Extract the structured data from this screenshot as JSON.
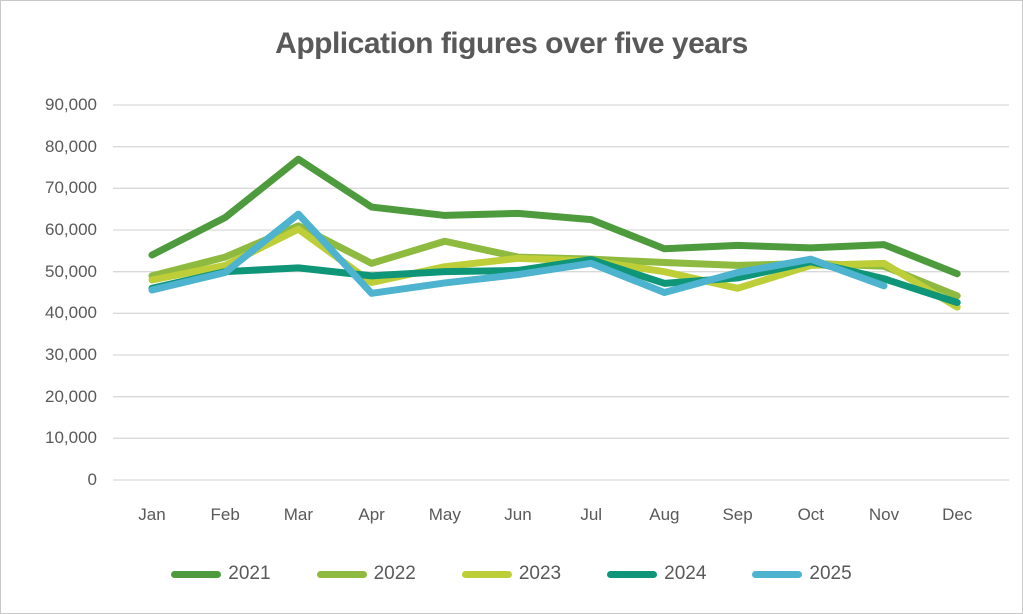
{
  "chart_data": {
    "type": "line",
    "title": "Application figures over five years",
    "x_categories": [
      "Jan",
      "Feb",
      "Mar",
      "Apr",
      "May",
      "Jun",
      "Jul",
      "Aug",
      "Sep",
      "Oct",
      "Nov",
      "Dec"
    ],
    "y_axis": {
      "min": 0,
      "max": 90000,
      "tick_interval": 10000,
      "tick_labels": [
        "0",
        "10,000",
        "20,000",
        "30,000",
        "40,000",
        "50,000",
        "60,000",
        "70,000",
        "80,000",
        "90,000"
      ]
    },
    "grid": "horizontal",
    "legend_position": "bottom",
    "text_color": "#595959",
    "gridline_color": "#d9d9d9",
    "series": [
      {
        "name": "2021",
        "color": "#4E9B3D",
        "values": [
          54000,
          63000,
          77000,
          65500,
          63500,
          64000,
          62500,
          55500,
          56300,
          55700,
          56500,
          49500
        ]
      },
      {
        "name": "2022",
        "color": "#8EBA3F",
        "values": [
          49000,
          53500,
          61000,
          52000,
          57300,
          53500,
          53000,
          52200,
          51500,
          52000,
          51300,
          44200
        ]
      },
      {
        "name": "2023",
        "color": "#BDCE39",
        "values": [
          48000,
          51500,
          60200,
          47400,
          51200,
          53200,
          52600,
          50000,
          46000,
          51500,
          52000,
          41500
        ]
      },
      {
        "name": "2024",
        "color": "#0F9578",
        "values": [
          46000,
          50000,
          50900,
          49000,
          50000,
          50300,
          52900,
          47200,
          48500,
          52400,
          48300,
          42600
        ]
      },
      {
        "name": "2025",
        "color": "#4DB3CE",
        "values": [
          45600,
          49800,
          63800,
          44800,
          47300,
          49300,
          52000,
          45000,
          49800,
          53000,
          46600,
          null
        ]
      }
    ]
  }
}
